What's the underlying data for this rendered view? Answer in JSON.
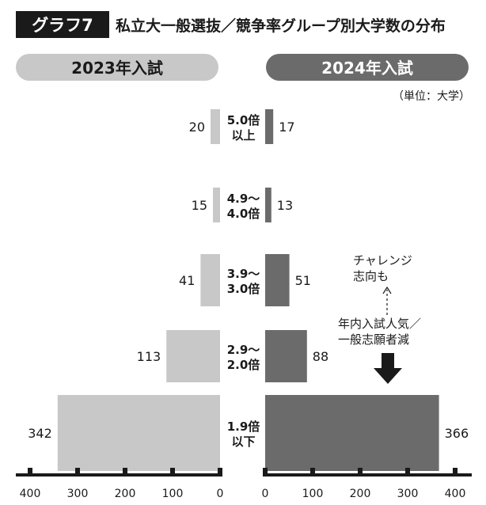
{
  "header": {
    "label": "グラフ7",
    "title": "私立大一般選抜／競争率グループ別大学数の分布"
  },
  "panels": {
    "left_title": "2023年入試",
    "right_title": "2024年入試"
  },
  "unit_note": "（単位：大学）",
  "annotations": {
    "challenge_line1": "チャレンジ",
    "challenge_line2": "志向も",
    "decline_line1": "年内入試人気／",
    "decline_line2": "一般志願者減"
  },
  "colors": {
    "header_bg": "#1a1a1a",
    "left_bar": "#c8c8c8",
    "right_bar": "#6b6b6b",
    "pill_left": "#c8c8c8",
    "pill_right": "#6b6b6b",
    "axis": "#1a1a1a"
  },
  "chart_data": {
    "type": "bar",
    "orientation": "horizontal-butterfly",
    "categories": [
      [
        "5.0倍",
        "以上"
      ],
      [
        "4.9～",
        "4.0倍"
      ],
      [
        "3.9～",
        "3.0倍"
      ],
      [
        "2.9～",
        "2.0倍"
      ],
      [
        "1.9倍",
        "以下"
      ]
    ],
    "series": [
      {
        "name": "2023年入試",
        "side": "left",
        "values": [
          20,
          15,
          41,
          113,
          342
        ]
      },
      {
        "name": "2024年入試",
        "side": "right",
        "values": [
          17,
          13,
          51,
          88,
          366
        ]
      }
    ],
    "left_axis_ticks": [
      "400",
      "300",
      "200",
      "100",
      "0"
    ],
    "right_axis_ticks": [
      "0",
      "100",
      "200",
      "300",
      "400"
    ],
    "xlim": [
      0,
      400
    ],
    "grid": false,
    "legend": "panel headers"
  }
}
